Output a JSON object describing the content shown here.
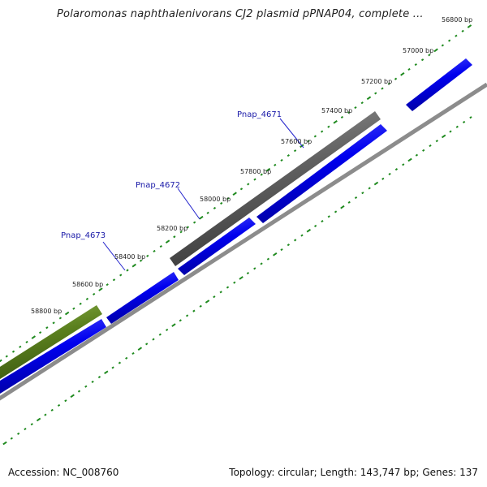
{
  "title": "Polaromonas naphthalenivorans CJ2 plasmid pPNAP04, complete ...",
  "footer": {
    "accession": "Accession: NC_008760",
    "stats": "Topology: circular; Length: 143,747 bp; Genes: 137"
  },
  "colors": {
    "tick": "#1f8a1f",
    "backbone": "#8c8c8c",
    "gene_forward": "#0000ee",
    "gene_gray": "#5f5f5f",
    "gene_olive": "#5a7f1e",
    "gene_label": "#1a1aa8",
    "leader_line": "#2424cc"
  },
  "bp_labels": [
    {
      "bp": 56800,
      "text": "56800 bp"
    },
    {
      "bp": 57000,
      "text": "57000 bp"
    },
    {
      "bp": 57200,
      "text": "57200 bp"
    },
    {
      "bp": 57400,
      "text": "57400 bp"
    },
    {
      "bp": 57600,
      "text": "57600 bp"
    },
    {
      "bp": 57800,
      "text": "57800 bp"
    },
    {
      "bp": 58000,
      "text": "58000 bp"
    },
    {
      "bp": 58200,
      "text": "58200 bp"
    },
    {
      "bp": 58400,
      "text": "58400 bp"
    },
    {
      "bp": 58600,
      "text": "58600 bp"
    },
    {
      "bp": 58800,
      "text": "58800 bp"
    }
  ],
  "gene_labels": [
    {
      "id": "Pnap_4671",
      "text": "Pnap_4671"
    },
    {
      "id": "Pnap_4672",
      "text": "Pnap_4672"
    },
    {
      "id": "Pnap_4673",
      "text": "Pnap_4673"
    }
  ],
  "features": [
    {
      "name": "blue-gene-1",
      "track": "forward",
      "color": "gene_forward"
    },
    {
      "name": "blue-gene-2",
      "track": "forward",
      "color": "gene_forward"
    },
    {
      "name": "blue-gene-3",
      "track": "forward",
      "color": "gene_forward"
    },
    {
      "name": "blue-gene-4",
      "track": "forward",
      "color": "gene_forward"
    },
    {
      "name": "blue-gene-5",
      "track": "forward",
      "color": "gene_forward"
    },
    {
      "name": "blue-gene-6",
      "track": "forward",
      "color": "gene_forward"
    },
    {
      "name": "gray-gene",
      "track": "outer",
      "color": "gene_gray"
    },
    {
      "name": "olive-gene",
      "track": "outer",
      "color": "gene_olive"
    }
  ]
}
